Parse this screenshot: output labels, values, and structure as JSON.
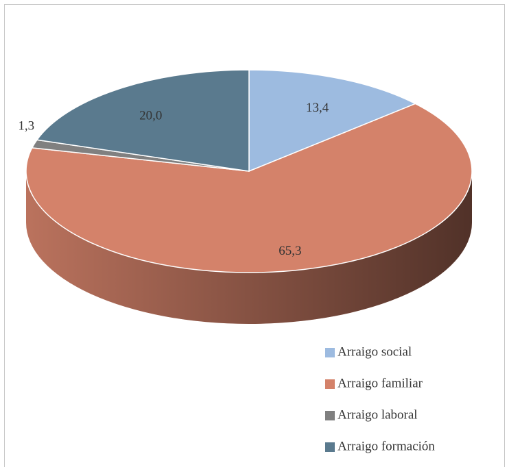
{
  "chart_data": {
    "type": "pie",
    "categories": [
      "Arraigo social",
      "Arraigo familiar",
      "Arraigo laboral",
      "Arraigo formación"
    ],
    "values": [
      13.4,
      65.3,
      1.3,
      20.0
    ],
    "value_labels": [
      "13,4",
      "65,3",
      "1,3",
      "20,0"
    ],
    "colors": [
      "#9dbbe0",
      "#d4826a",
      "#808080",
      "#5a7a8e"
    ],
    "legend": "bottom-right"
  }
}
